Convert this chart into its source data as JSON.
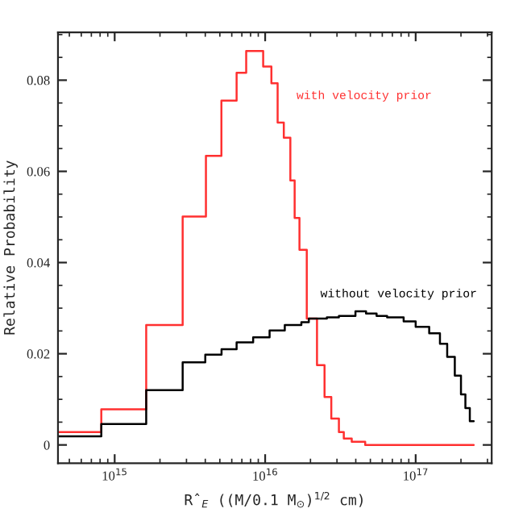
{
  "chart_data": {
    "type": "step",
    "xlabel": "R̂$_{E}$ ((M/0.1 M$_{⊙}$)$^{1/2}$ cm)",
    "ylabel": "Relative Probability",
    "log": "x",
    "xlim": [
      420000000000000.0,
      3.2e+17
    ],
    "xticks": [
      {
        "value": 1000000000000000.0,
        "label": "10$^{15}$"
      },
      {
        "value": 1e+16,
        "label": "10$^{16}$"
      },
      {
        "value": 1e+17,
        "label": "10$^{17}$"
      }
    ],
    "ylim": [
      -0.004,
      0.0905
    ],
    "yticks": [
      0,
      0.02,
      0.04,
      0.06,
      0.08
    ],
    "grid": false,
    "legend": false,
    "marker": "none",
    "series": [
      {
        "name": "with velocity prior",
        "color": "#ff3030",
        "x": [
          423000000000000.0,
          815000000000000.0,
          1620000000000000.0,
          2830000000000000.0,
          4040000000000000.0,
          5120000000000000.0,
          6460000000000000.0,
          7480000000000000.0,
          9700000000000000.0,
          1.1e+16,
          1.21e+16,
          1.33e+16,
          1.47e+16,
          1.57e+16,
          1.69e+16,
          1.89e+16,
          2.21e+16,
          2.48e+16,
          2.75e+16,
          3.09e+16,
          3.33e+16,
          3.76e+16,
          4.62e+16,
          2.43e+17
        ],
        "values": [
          0.0028,
          0.0078,
          0.0263,
          0.0501,
          0.0634,
          0.0755,
          0.0816,
          0.0864,
          0.083,
          0.0793,
          0.0707,
          0.0674,
          0.058,
          0.0498,
          0.0428,
          0.0277,
          0.0175,
          0.0105,
          0.0058,
          0.0028,
          0.0014,
          0.0007,
          0,
          0
        ]
      },
      {
        "name": "without velocity prior",
        "color": "#000000",
        "x": [
          423000000000000.0,
          815000000000000.0,
          1620000000000000.0,
          2830000000000000.0,
          4000000000000000.0,
          5130000000000000.0,
          6460000000000000.0,
          8320000000000000.0,
          1.07e+16,
          1.35e+16,
          1.74e+16,
          1.95e+16,
          2.57e+16,
          3.09e+16,
          3.98e+16,
          4.68e+16,
          5.5e+16,
          6.46e+16,
          8.32e+16,
          1e+17,
          1.23e+17,
          1.45e+17,
          1.62e+17,
          1.82e+17,
          2e+17,
          2.14e+17,
          2.29e+17,
          2.43e+17
        ],
        "values": [
          0.0019,
          0.0046,
          0.012,
          0.0181,
          0.0198,
          0.021,
          0.0225,
          0.0236,
          0.0251,
          0.0263,
          0.0269,
          0.0277,
          0.028,
          0.0283,
          0.0293,
          0.0288,
          0.0283,
          0.028,
          0.0271,
          0.0259,
          0.0245,
          0.0222,
          0.0193,
          0.0152,
          0.0111,
          0.0081,
          0.0052,
          0.0052
        ]
      }
    ]
  }
}
